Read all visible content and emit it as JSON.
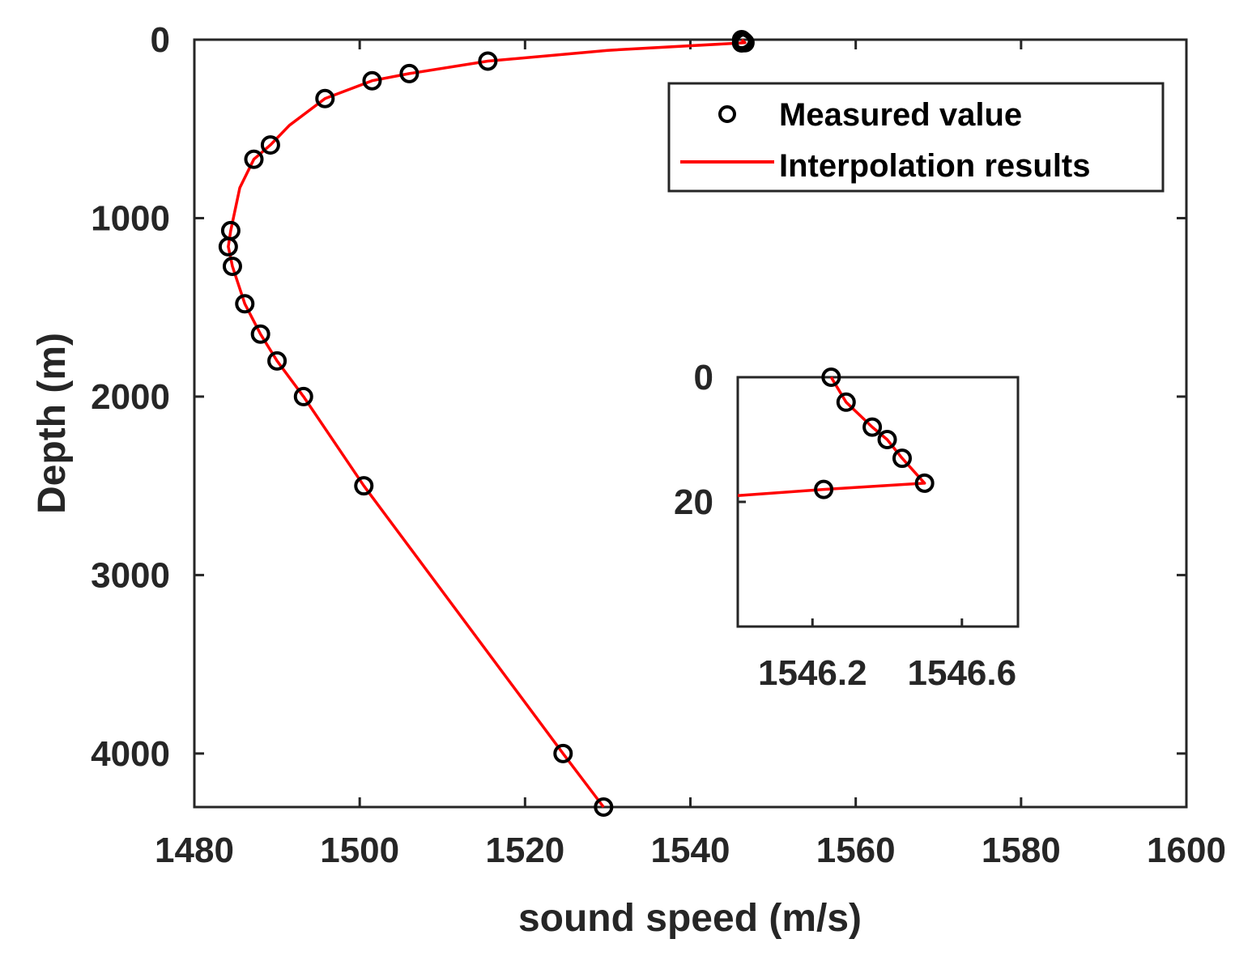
{
  "chart_data": {
    "type": "line",
    "title": "",
    "xlabel": "sound speed (m/s)",
    "ylabel": "Depth (m)",
    "xlim": [
      1480,
      1600
    ],
    "ylim": [
      4300,
      0
    ],
    "xticks": [
      1480,
      1500,
      1520,
      1540,
      1560,
      1580,
      1600
    ],
    "xtick_labels": [
      "1480",
      "1500",
      "1520",
      "1540",
      "1560",
      "1580",
      "1600"
    ],
    "yticks": [
      0,
      1000,
      2000,
      3000,
      4000
    ],
    "ytick_labels": [
      "0",
      "1000",
      "2000",
      "3000",
      "4000"
    ],
    "legend_position": "top-right",
    "colors": {
      "measured": "#000000",
      "interpolation": "#ff0000",
      "axis": "#262626"
    },
    "series": [
      {
        "name": "Measured value",
        "style": "markers",
        "x": [
          1546.2,
          1546.3,
          1546.4,
          1546.45,
          1546.5,
          1546.6,
          1546.2,
          1515.5,
          1506,
          1501.5,
          1495.8,
          1489.2,
          1487.2,
          1484.4,
          1484.1,
          1484.6,
          1486.1,
          1488.0,
          1490.0,
          1493.2,
          1500.5,
          1524.6,
          1529.5
        ],
        "y": [
          0,
          4,
          8,
          10,
          13,
          17,
          18,
          120,
          190,
          230,
          330,
          590,
          670,
          1070,
          1160,
          1270,
          1480,
          1650,
          1800,
          2000,
          2500,
          4000,
          4300
        ]
      },
      {
        "name": "Interpolation results",
        "style": "line",
        "x": [
          1546.2,
          1546.6,
          1546.2,
          1530,
          1515.5,
          1506,
          1501.5,
          1495.8,
          1491.5,
          1489.2,
          1487.2,
          1485.5,
          1484.4,
          1484.1,
          1484.6,
          1486.1,
          1488.0,
          1490.0,
          1493.2,
          1500.5,
          1524.6,
          1529.5
        ],
        "y": [
          0,
          17,
          18,
          60,
          120,
          190,
          230,
          330,
          480,
          590,
          670,
          830,
          1070,
          1160,
          1270,
          1480,
          1650,
          1800,
          2000,
          2500,
          4000,
          4300
        ]
      }
    ],
    "inset": {
      "xlim": [
        1546.0,
        1546.75
      ],
      "ylim": [
        40,
        0
      ],
      "xticks": [
        1546.2,
        1546.6
      ],
      "xtick_labels": [
        "1546.2",
        "1546.6"
      ],
      "yticks": [
        0,
        20
      ],
      "ytick_labels": [
        "0",
        "20"
      ],
      "measured": {
        "x": [
          1546.25,
          1546.29,
          1546.36,
          1546.4,
          1546.44,
          1546.5,
          1546.23
        ],
        "y": [
          0,
          4,
          8,
          10,
          13,
          17,
          18
        ]
      },
      "line": {
        "x": [
          1546.25,
          1546.29,
          1546.36,
          1546.4,
          1546.44,
          1546.5,
          1546.23,
          1546.0
        ],
        "y": [
          0,
          4,
          8,
          10,
          13,
          17,
          18,
          19
        ]
      }
    }
  }
}
